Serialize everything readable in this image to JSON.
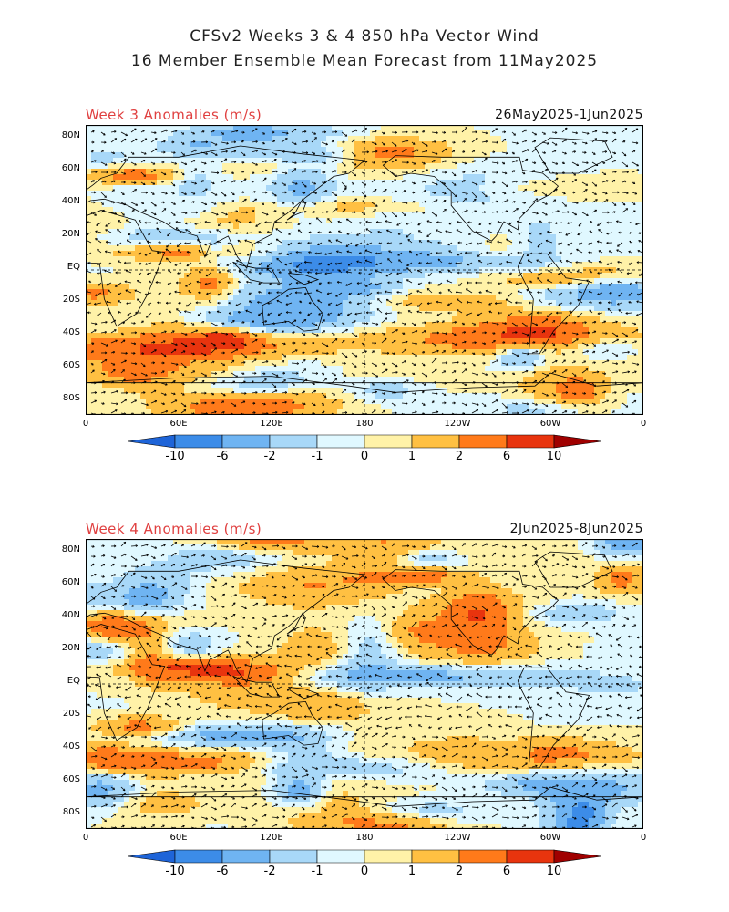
{
  "header": {
    "title_line1": "CFSv2 Weeks 3 & 4 850 hPa Vector Wind",
    "title_line2": "16 Member Ensemble Mean Forecast from 11May2025"
  },
  "panels": [
    {
      "label": "Week 3 Anomalies (m/s)",
      "date_range": "26May2025-1Jun2025"
    },
    {
      "label": "Week 4 Anomalies (m/s)",
      "date_range": "2Jun2025-8Jun2025"
    }
  ],
  "axes": {
    "lat_labels": [
      "80N",
      "60N",
      "40N",
      "20N",
      "EQ",
      "20S",
      "40S",
      "60S",
      "80S"
    ],
    "lon_labels": [
      "0",
      "60E",
      "120E",
      "180",
      "120W",
      "60W",
      "0"
    ]
  },
  "colorbar": {
    "labels": [
      "-10",
      "-6",
      "-2",
      "-1",
      "0",
      "1",
      "2",
      "6",
      "10"
    ],
    "colors": [
      "#1e64d8",
      "#3c8ce8",
      "#6fb4f2",
      "#a8d8f8",
      "#e0f8ff",
      "#fff2a8",
      "#ffc042",
      "#ff7a1a",
      "#e8340e",
      "#a00000"
    ]
  },
  "colors": {
    "label_red": "#e04040",
    "coast": "#000000",
    "vector": "#000000"
  }
}
